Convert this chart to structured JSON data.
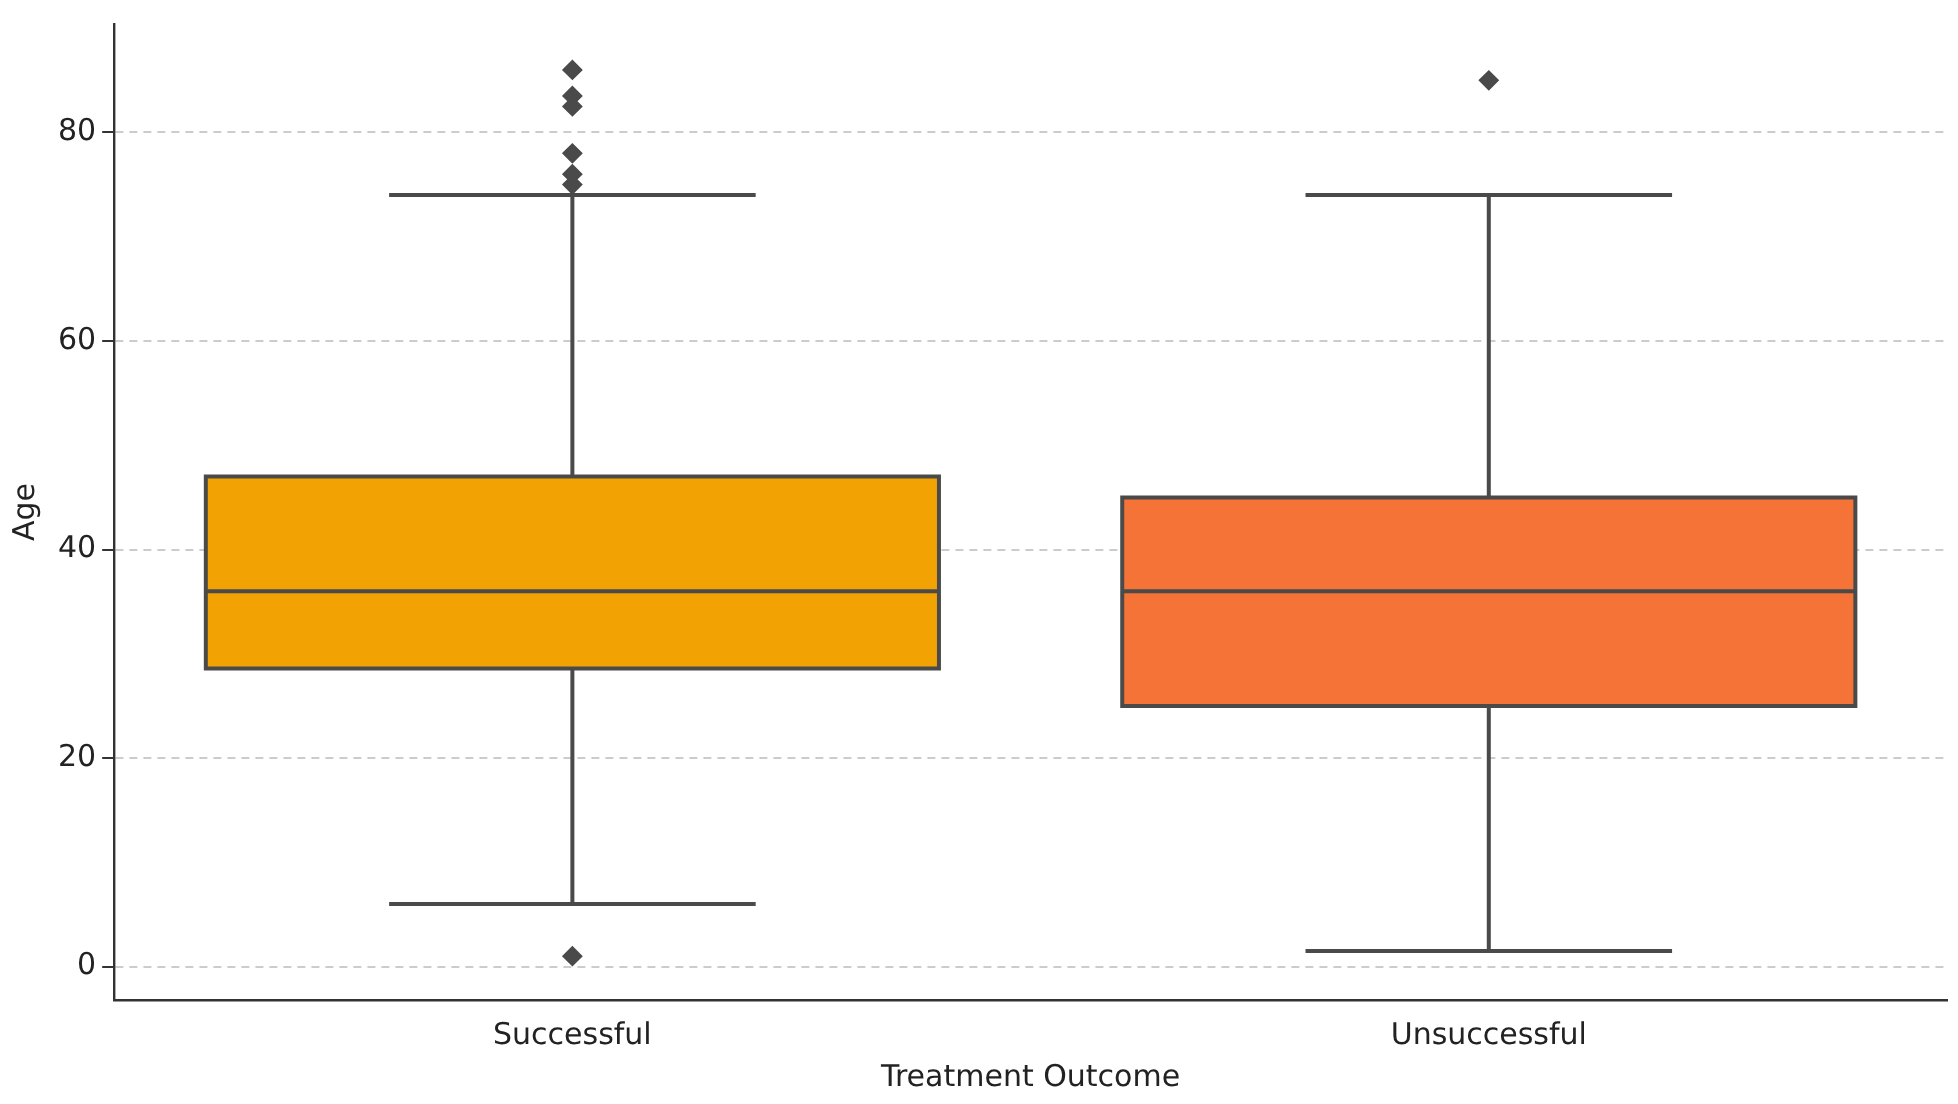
{
  "chart_data": {
    "type": "box",
    "xlabel": "Treatment Outcome",
    "ylabel": "Age",
    "categories": [
      "Successful",
      "Unsuccessful"
    ],
    "colors": [
      "#f2a303",
      "#f57336"
    ],
    "boxes": [
      {
        "low": 6,
        "q1": 28.6,
        "median": 36,
        "q3": 47,
        "high": 74,
        "outliers": [
          86,
          83.5,
          82.5,
          78,
          76,
          75,
          1
        ]
      },
      {
        "low": 1.5,
        "q1": 25,
        "median": 36,
        "q3": 45,
        "high": 74,
        "outliers": [
          85
        ]
      }
    ],
    "ylim": [
      -3.2,
      90.4
    ],
    "yticks": [
      0,
      20,
      40,
      60,
      80
    ],
    "grid": "y"
  }
}
